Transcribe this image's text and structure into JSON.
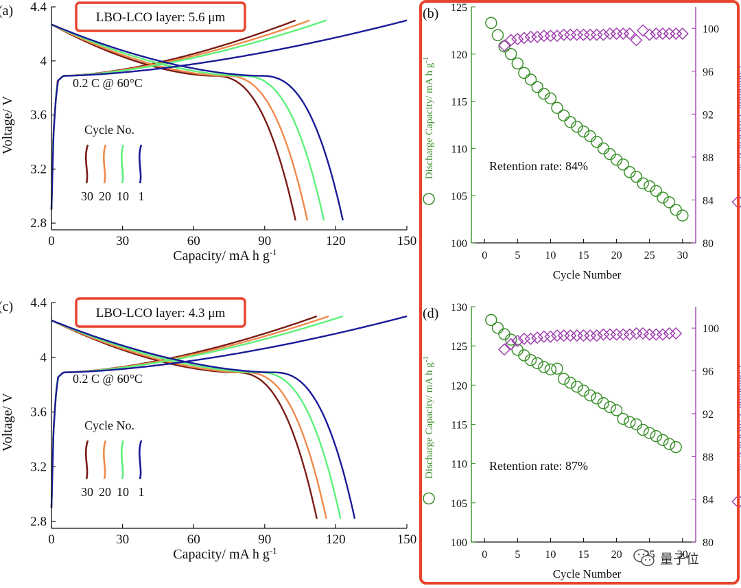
{
  "watermark": {
    "text": "量子位",
    "icon": "wechat-icon"
  },
  "highlight_color": "#e8432f",
  "chart_data": [
    {
      "panel": "(a)",
      "type": "line",
      "annotation": "LBO-LCO layer: 5.6 μm",
      "condition": "0.2 C @ 60°C",
      "legend_title": "Cycle No.",
      "legend_labels": [
        "30",
        "20",
        "10",
        "1"
      ],
      "xlabel": "Capacity/ mA h g",
      "xlabel_sup": "-1",
      "ylabel": "Voltage/ V",
      "xlim": [
        0,
        150
      ],
      "ylim": [
        2.75,
        4.4
      ],
      "xticks": [
        "0",
        "30",
        "60",
        "90",
        "120",
        "150"
      ],
      "yticks": [
        "2.8",
        "3.2",
        "3.6",
        "4",
        "4.4"
      ],
      "series": [
        {
          "name": "30",
          "color": "#7a1c17",
          "charge_end": 103,
          "discharge_end": 103
        },
        {
          "name": "20",
          "color": "#f08a4b",
          "charge_end": 109,
          "discharge_end": 108
        },
        {
          "name": "10",
          "color": "#5ef07a",
          "charge_end": 116,
          "discharge_end": 115
        },
        {
          "name": "1",
          "color": "#1a1a99",
          "charge_end": 150,
          "discharge_end": 123
        }
      ]
    },
    {
      "panel": "(b)",
      "type": "scatter",
      "retention": "Retention rate:  84%",
      "xlabel": "Cycle Number",
      "ylabel": "Discharge Capacity/ mA h g",
      "ylabel_sup": "-1",
      "y2label": "Coulombic Efficiency/ %",
      "xlim": [
        -2,
        32
      ],
      "ylim": [
        100,
        125
      ],
      "y2lim": [
        80,
        102
      ],
      "xticks": [
        "0",
        "5",
        "10",
        "15",
        "20",
        "25",
        "30"
      ],
      "yticks": [
        "100",
        "105",
        "110",
        "115",
        "120",
        "125"
      ],
      "y2ticks": [
        "80",
        "84",
        "88",
        "92",
        "96",
        "100"
      ],
      "cycles": [
        1,
        2,
        3,
        4,
        5,
        6,
        7,
        8,
        9,
        10,
        11,
        12,
        13,
        14,
        15,
        16,
        17,
        18,
        19,
        20,
        21,
        22,
        23,
        24,
        25,
        26,
        27,
        28,
        29,
        30
      ],
      "capacity": [
        123.3,
        122.0,
        120.8,
        120.0,
        119.0,
        118.0,
        117.3,
        116.5,
        115.8,
        115.3,
        114.3,
        113.5,
        112.8,
        112.3,
        111.8,
        111.3,
        110.7,
        110.0,
        109.4,
        108.8,
        108.3,
        107.5,
        107.0,
        106.3,
        106.0,
        105.5,
        104.8,
        104.3,
        103.5,
        102.9
      ],
      "efficiency_cycles": [
        3,
        4,
        5,
        6,
        7,
        8,
        9,
        10,
        11,
        12,
        13,
        14,
        15,
        16,
        17,
        18,
        19,
        20,
        21,
        22,
        23,
        24,
        25,
        26,
        27,
        28,
        29,
        30
      ],
      "efficiency": [
        98.4,
        98.9,
        99.0,
        99.1,
        99.2,
        99.2,
        99.3,
        99.3,
        99.3,
        99.4,
        99.4,
        99.4,
        99.4,
        99.4,
        99.4,
        99.4,
        99.5,
        99.5,
        99.5,
        99.5,
        98.9,
        99.8,
        99.4,
        99.5,
        99.5,
        99.5,
        99.5,
        99.5
      ],
      "capacity_color": "#3a8f2a",
      "efficiency_color": "#a040b0"
    },
    {
      "panel": "(c)",
      "type": "line",
      "annotation": "LBO-LCO layer: 4.3 μm",
      "condition": "0.2 C @ 60°C",
      "legend_title": "Cycle No.",
      "legend_labels": [
        "30",
        "20",
        "10",
        "1"
      ],
      "xlabel": "Capacity/ mA h g",
      "xlabel_sup": "-1",
      "ylabel": "Voltage/ V",
      "xlim": [
        0,
        150
      ],
      "ylim": [
        2.75,
        4.4
      ],
      "xticks": [
        "0",
        "30",
        "60",
        "90",
        "120",
        "150"
      ],
      "yticks": [
        "2.8",
        "3.2",
        "3.6",
        "4",
        "4.4"
      ],
      "series": [
        {
          "name": "30",
          "color": "#7a1c17",
          "charge_end": 112,
          "discharge_end": 112
        },
        {
          "name": "20",
          "color": "#f08a4b",
          "charge_end": 117,
          "discharge_end": 116
        },
        {
          "name": "10",
          "color": "#5ef07a",
          "charge_end": 123,
          "discharge_end": 122
        },
        {
          "name": "1",
          "color": "#1a1a99",
          "charge_end": 150,
          "discharge_end": 128
        }
      ]
    },
    {
      "panel": "(d)",
      "type": "scatter",
      "retention": "Retention rate:  87%",
      "xlabel": "Cycle Number",
      "ylabel": "Discharge Capacity/ mA h g",
      "ylabel_sup": "-1",
      "y2label": "Coulombic Efficiency/ %",
      "xlim": [
        -2,
        32
      ],
      "ylim": [
        100,
        130
      ],
      "y2lim": [
        80,
        102
      ],
      "xticks": [
        "0",
        "5",
        "10",
        "15",
        "20",
        "25",
        "30"
      ],
      "yticks": [
        "100",
        "105",
        "110",
        "115",
        "120",
        "125",
        "130"
      ],
      "y2ticks": [
        "80",
        "84",
        "88",
        "92",
        "96",
        "100"
      ],
      "cycles": [
        1,
        2,
        3,
        4,
        5,
        6,
        7,
        8,
        9,
        10,
        11,
        12,
        13,
        14,
        15,
        16,
        17,
        18,
        19,
        20,
        21,
        22,
        23,
        24,
        25,
        26,
        27,
        28,
        29
      ],
      "capacity": [
        128.3,
        127.3,
        126.5,
        125.8,
        124.5,
        123.8,
        123.2,
        122.8,
        122.3,
        122.0,
        122.1,
        120.8,
        120.3,
        119.8,
        119.3,
        118.7,
        118.3,
        117.7,
        117.2,
        116.8,
        115.7,
        115.3,
        115.0,
        114.3,
        113.9,
        113.5,
        113.0,
        112.5,
        112.1
      ],
      "efficiency_cycles": [
        3,
        4,
        5,
        6,
        7,
        8,
        9,
        10,
        11,
        12,
        13,
        14,
        15,
        16,
        17,
        18,
        19,
        20,
        21,
        22,
        23,
        24,
        25,
        26,
        27,
        28,
        29
      ],
      "efficiency": [
        98.0,
        98.5,
        98.8,
        99.0,
        99.0,
        99.1,
        99.2,
        99.2,
        99.3,
        99.3,
        99.3,
        99.3,
        99.3,
        99.3,
        99.3,
        99.4,
        99.4,
        99.4,
        99.4,
        99.4,
        99.5,
        99.5,
        99.4,
        99.4,
        99.4,
        99.5,
        99.5
      ],
      "capacity_color": "#3a8f2a",
      "efficiency_color": "#a040b0"
    }
  ]
}
